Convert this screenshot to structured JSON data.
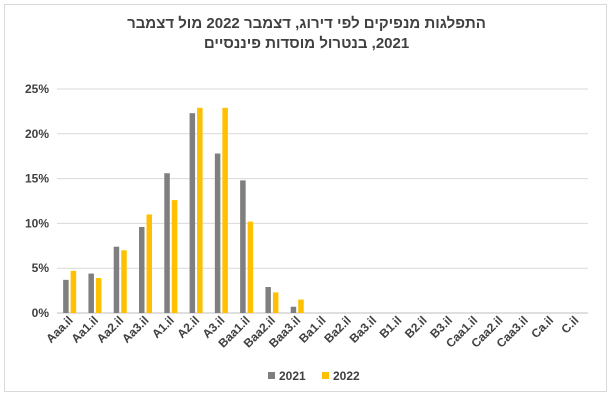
{
  "chart_data": {
    "type": "bar",
    "title_line1": "התפלגות מנפיקים לפי דירוג, דצמבר 2022 מול דצמבר",
    "title_line2": "2021, בנטרול מוסדות פיננסיים",
    "categories": [
      "Aaa.il",
      "Aa1.il",
      "Aa2.il",
      "Aa3.il",
      "A1.il",
      "A2.il",
      "A3.il",
      "Baa1.il",
      "Baa2.il",
      "Baa3.il",
      "Ba1.il",
      "Ba2.il",
      "Ba3.il",
      "B1.il",
      "B2.il",
      "B3.il",
      "Caa1.il",
      "Caa2.il",
      "Caa3.il",
      "Ca.il",
      "C.il"
    ],
    "series": [
      {
        "name": "2021",
        "color": "#7f7f7f",
        "values": [
          3.7,
          4.4,
          7.4,
          9.6,
          15.6,
          22.3,
          17.8,
          14.8,
          2.9,
          0.7,
          0,
          0,
          0,
          0,
          0,
          0,
          0,
          0,
          0,
          0,
          0
        ]
      },
      {
        "name": "2022",
        "color": "#ffc000",
        "values": [
          4.7,
          3.9,
          7.0,
          11.0,
          12.6,
          22.9,
          22.9,
          10.2,
          2.3,
          1.5,
          0,
          0,
          0,
          0,
          0,
          0,
          0,
          0,
          0,
          0,
          0
        ]
      }
    ],
    "y_ticks": [
      "0%",
      "5%",
      "10%",
      "15%",
      "20%",
      "25%"
    ],
    "ylim": [
      0,
      25
    ],
    "grid": true,
    "legend": "bottom"
  }
}
